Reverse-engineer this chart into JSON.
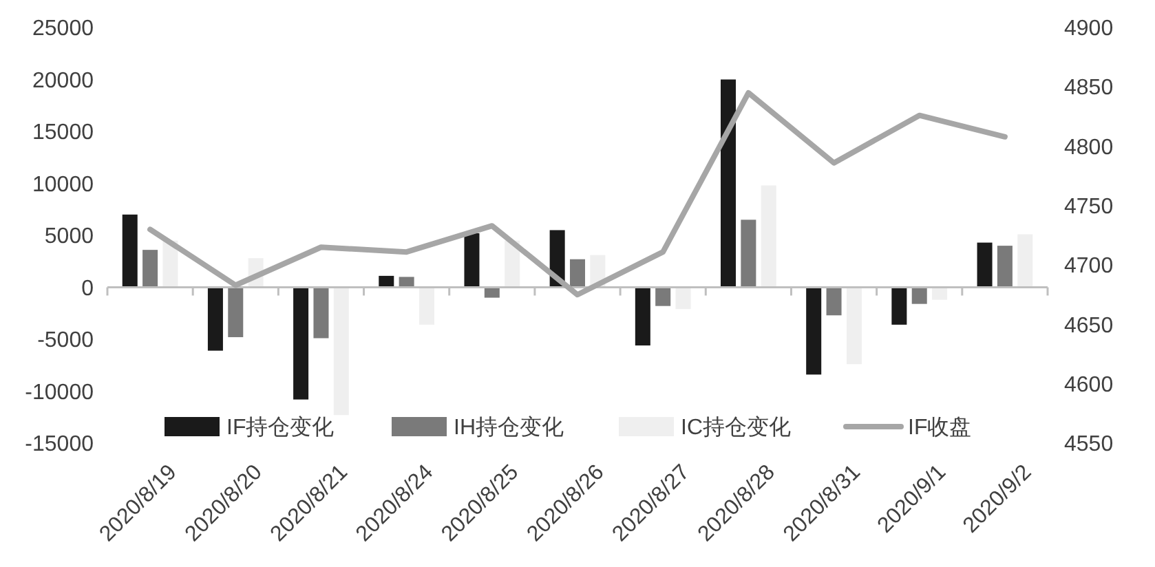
{
  "chart_data": {
    "type": "bar",
    "categories": [
      "2020/8/19",
      "2020/8/20",
      "2020/8/21",
      "2020/8/24",
      "2020/8/25",
      "2020/8/26",
      "2020/8/27",
      "2020/8/28",
      "2020/8/31",
      "2020/9/1",
      "2020/9/2"
    ],
    "series": [
      {
        "name": "IF持仓变化",
        "color": "#1a1a1a",
        "values": [
          7000,
          -6100,
          -10800,
          1100,
          5200,
          5500,
          -5600,
          20000,
          -8400,
          -3600,
          4300
        ]
      },
      {
        "name": "IH持仓变化",
        "color": "#7a7a7a",
        "values": [
          3600,
          -4800,
          -4900,
          1000,
          -1000,
          2700,
          -1800,
          6500,
          -2700,
          -1600,
          4000
        ]
      },
      {
        "name": "IC持仓变化",
        "color": "#efefef",
        "values": [
          4500,
          2800,
          -12300,
          -3600,
          4500,
          3100,
          -2100,
          9800,
          -7400,
          -1200,
          5100
        ]
      },
      {
        "name": "IF收盘",
        "type": "line",
        "axis": "y2",
        "color": "#a6a6a6",
        "values": [
          4730,
          4683,
          4715,
          4711,
          4733,
          4675,
          4711,
          4845,
          4786,
          4826,
          4808
        ]
      }
    ],
    "ylim": [
      -15000,
      25000
    ],
    "yticks": [
      -15000,
      -10000,
      -5000,
      0,
      5000,
      10000,
      15000,
      20000,
      25000
    ],
    "y2lim": [
      4550,
      4900
    ],
    "y2ticks": [
      4550,
      4600,
      4650,
      4700,
      4750,
      4800,
      4850,
      4900
    ],
    "legend": "bottom"
  }
}
